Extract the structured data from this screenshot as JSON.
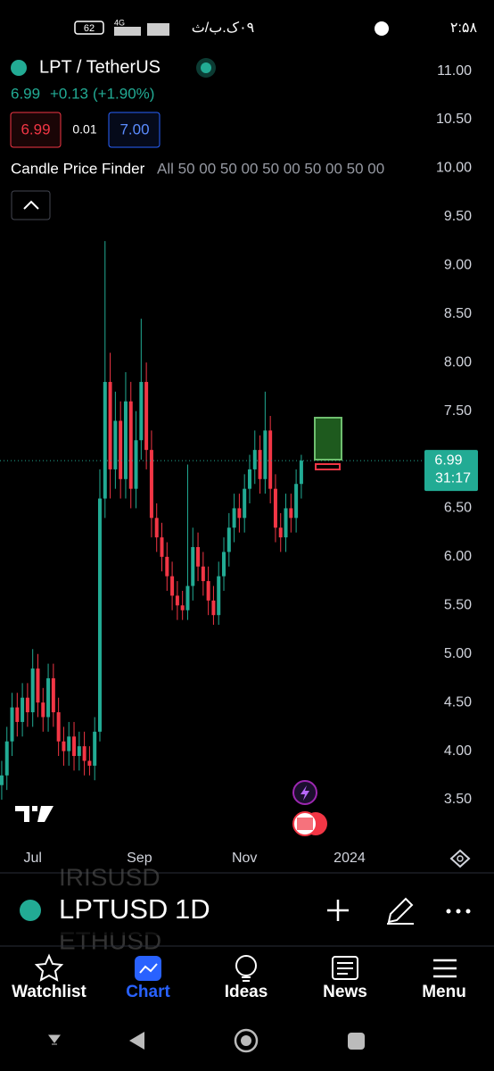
{
  "status_bar": {
    "battery": "62",
    "network": "4G",
    "date_text": "٠٩ک.ب/ث",
    "clock": "۲:۵۸"
  },
  "header": {
    "symbol": "LPT / TetherUS",
    "price": "6.99",
    "change": "+0.13",
    "change_pct": "(+1.90%)",
    "bid": "6.99",
    "spread": "0.01",
    "ask": "7.00",
    "indicator": "Candle Price Finder",
    "indicator_params": "All 50 00 50 00 50 00 50 00 50 00"
  },
  "chart_data": {
    "type": "candlestick",
    "x": [
      0,
      3,
      6,
      9,
      12,
      15,
      18,
      21,
      24,
      27,
      30,
      33,
      36,
      39,
      42,
      45,
      48,
      51,
      54,
      57,
      60,
      63,
      66,
      69,
      72,
      75,
      78,
      81,
      84,
      87,
      90,
      93,
      96,
      99,
      102,
      105,
      108,
      111,
      114,
      117,
      120,
      123,
      126,
      129,
      132,
      135,
      138,
      141,
      144,
      147,
      150,
      153,
      156,
      159,
      162,
      165,
      168,
      171,
      174
    ],
    "open": [
      3.65,
      3.75,
      4.1,
      4.45,
      4.3,
      4.55,
      4.4,
      4.85,
      4.5,
      4.35,
      4.75,
      4.4,
      4.1,
      4.0,
      4.15,
      3.95,
      4.05,
      3.9,
      3.85,
      4.2,
      6.6,
      7.8,
      6.9,
      7.4,
      6.8,
      7.6,
      6.7,
      7.2,
      7.8,
      7.1,
      6.4,
      6.2,
      6.0,
      5.8,
      5.6,
      5.5,
      5.45,
      5.7,
      6.1,
      5.9,
      5.75,
      5.55,
      5.4,
      5.8,
      6.05,
      6.3,
      6.5,
      6.4,
      6.7,
      6.9,
      7.1,
      6.8,
      7.3,
      6.7,
      6.3,
      6.2,
      6.5,
      6.4,
      6.75
    ],
    "high": [
      3.9,
      4.25,
      4.6,
      4.6,
      4.7,
      4.7,
      5.05,
      5.0,
      4.65,
      4.9,
      4.9,
      4.55,
      4.25,
      4.3,
      4.3,
      4.2,
      4.2,
      4.05,
      4.35,
      6.9,
      9.25,
      8.1,
      7.7,
      7.6,
      7.9,
      7.8,
      7.5,
      8.45,
      8.0,
      7.3,
      6.55,
      6.35,
      6.15,
      5.95,
      5.75,
      5.65,
      6.95,
      6.3,
      6.25,
      6.05,
      5.9,
      5.7,
      5.95,
      6.2,
      6.45,
      6.65,
      6.65,
      6.85,
      7.05,
      7.3,
      7.25,
      7.7,
      7.45,
      6.85,
      6.45,
      6.65,
      6.65,
      6.9,
      7.05
    ],
    "low": [
      3.5,
      3.6,
      3.95,
      4.15,
      4.15,
      4.25,
      4.25,
      4.35,
      4.2,
      4.2,
      4.25,
      3.95,
      3.85,
      3.85,
      3.8,
      3.8,
      3.75,
      3.75,
      3.7,
      4.1,
      6.4,
      6.6,
      6.7,
      6.6,
      6.6,
      6.5,
      6.5,
      7.0,
      6.9,
      6.2,
      6.05,
      5.85,
      5.65,
      5.45,
      5.35,
      5.35,
      5.35,
      5.55,
      5.75,
      5.6,
      5.4,
      5.3,
      5.3,
      5.65,
      5.9,
      6.15,
      6.25,
      6.25,
      6.55,
      6.75,
      6.65,
      6.65,
      6.55,
      6.15,
      6.05,
      6.05,
      6.25,
      6.25,
      6.6
    ],
    "close": [
      3.75,
      4.1,
      4.45,
      4.3,
      4.55,
      4.4,
      4.85,
      4.5,
      4.35,
      4.75,
      4.4,
      4.1,
      4.0,
      4.15,
      3.95,
      4.05,
      3.9,
      3.85,
      4.2,
      6.6,
      7.8,
      6.9,
      7.4,
      6.8,
      7.6,
      6.7,
      7.2,
      7.8,
      7.1,
      6.4,
      6.2,
      6.0,
      5.8,
      5.6,
      5.5,
      5.45,
      5.7,
      6.1,
      5.9,
      5.75,
      5.55,
      5.4,
      5.8,
      6.05,
      6.3,
      6.5,
      6.4,
      6.7,
      6.9,
      7.1,
      6.8,
      7.3,
      6.7,
      6.3,
      6.2,
      6.5,
      6.4,
      6.75,
      6.99
    ],
    "up_color": "#22ab94",
    "down_color": "#f23645",
    "xlim": [
      -1,
      245
    ],
    "xticks": [
      {
        "value": 18,
        "label": "Jul"
      },
      {
        "value": 80,
        "label": "Sep"
      },
      {
        "value": 141,
        "label": "Nov"
      },
      {
        "value": 202,
        "label": "2024"
      }
    ],
    "ylim": [
      3.05,
      11.18
    ],
    "yticks": [
      {
        "value": 3.5,
        "label": "3.50"
      },
      {
        "value": 4,
        "label": "4.00"
      },
      {
        "value": 4.5,
        "label": "4.50"
      },
      {
        "value": 5,
        "label": "5.00"
      },
      {
        "value": 5.5,
        "label": "5.50"
      },
      {
        "value": 6,
        "label": "6.00"
      },
      {
        "value": 6.5,
        "label": "6.50"
      },
      {
        "value": 7,
        "label": "7.00"
      },
      {
        "value": 7.5,
        "label": "7.50"
      },
      {
        "value": 8,
        "label": "8.00"
      },
      {
        "value": 8.5,
        "label": "8.50"
      },
      {
        "value": 9,
        "label": "9.00"
      },
      {
        "value": 9.5,
        "label": "9.50"
      },
      {
        "value": 10,
        "label": "10.00"
      },
      {
        "value": 10.5,
        "label": "10.50"
      },
      {
        "value": 11,
        "label": "11.00"
      }
    ],
    "last_price": 6.99,
    "countdown": "31:17"
  },
  "toolbar": {
    "prev_symbol": "IRISUSD",
    "symbol": "LPTUSD",
    "interval": "1D",
    "next_symbol": "ETHUSD"
  },
  "nav": [
    "Watchlist",
    "Chart",
    "Ideas",
    "News",
    "Menu"
  ]
}
